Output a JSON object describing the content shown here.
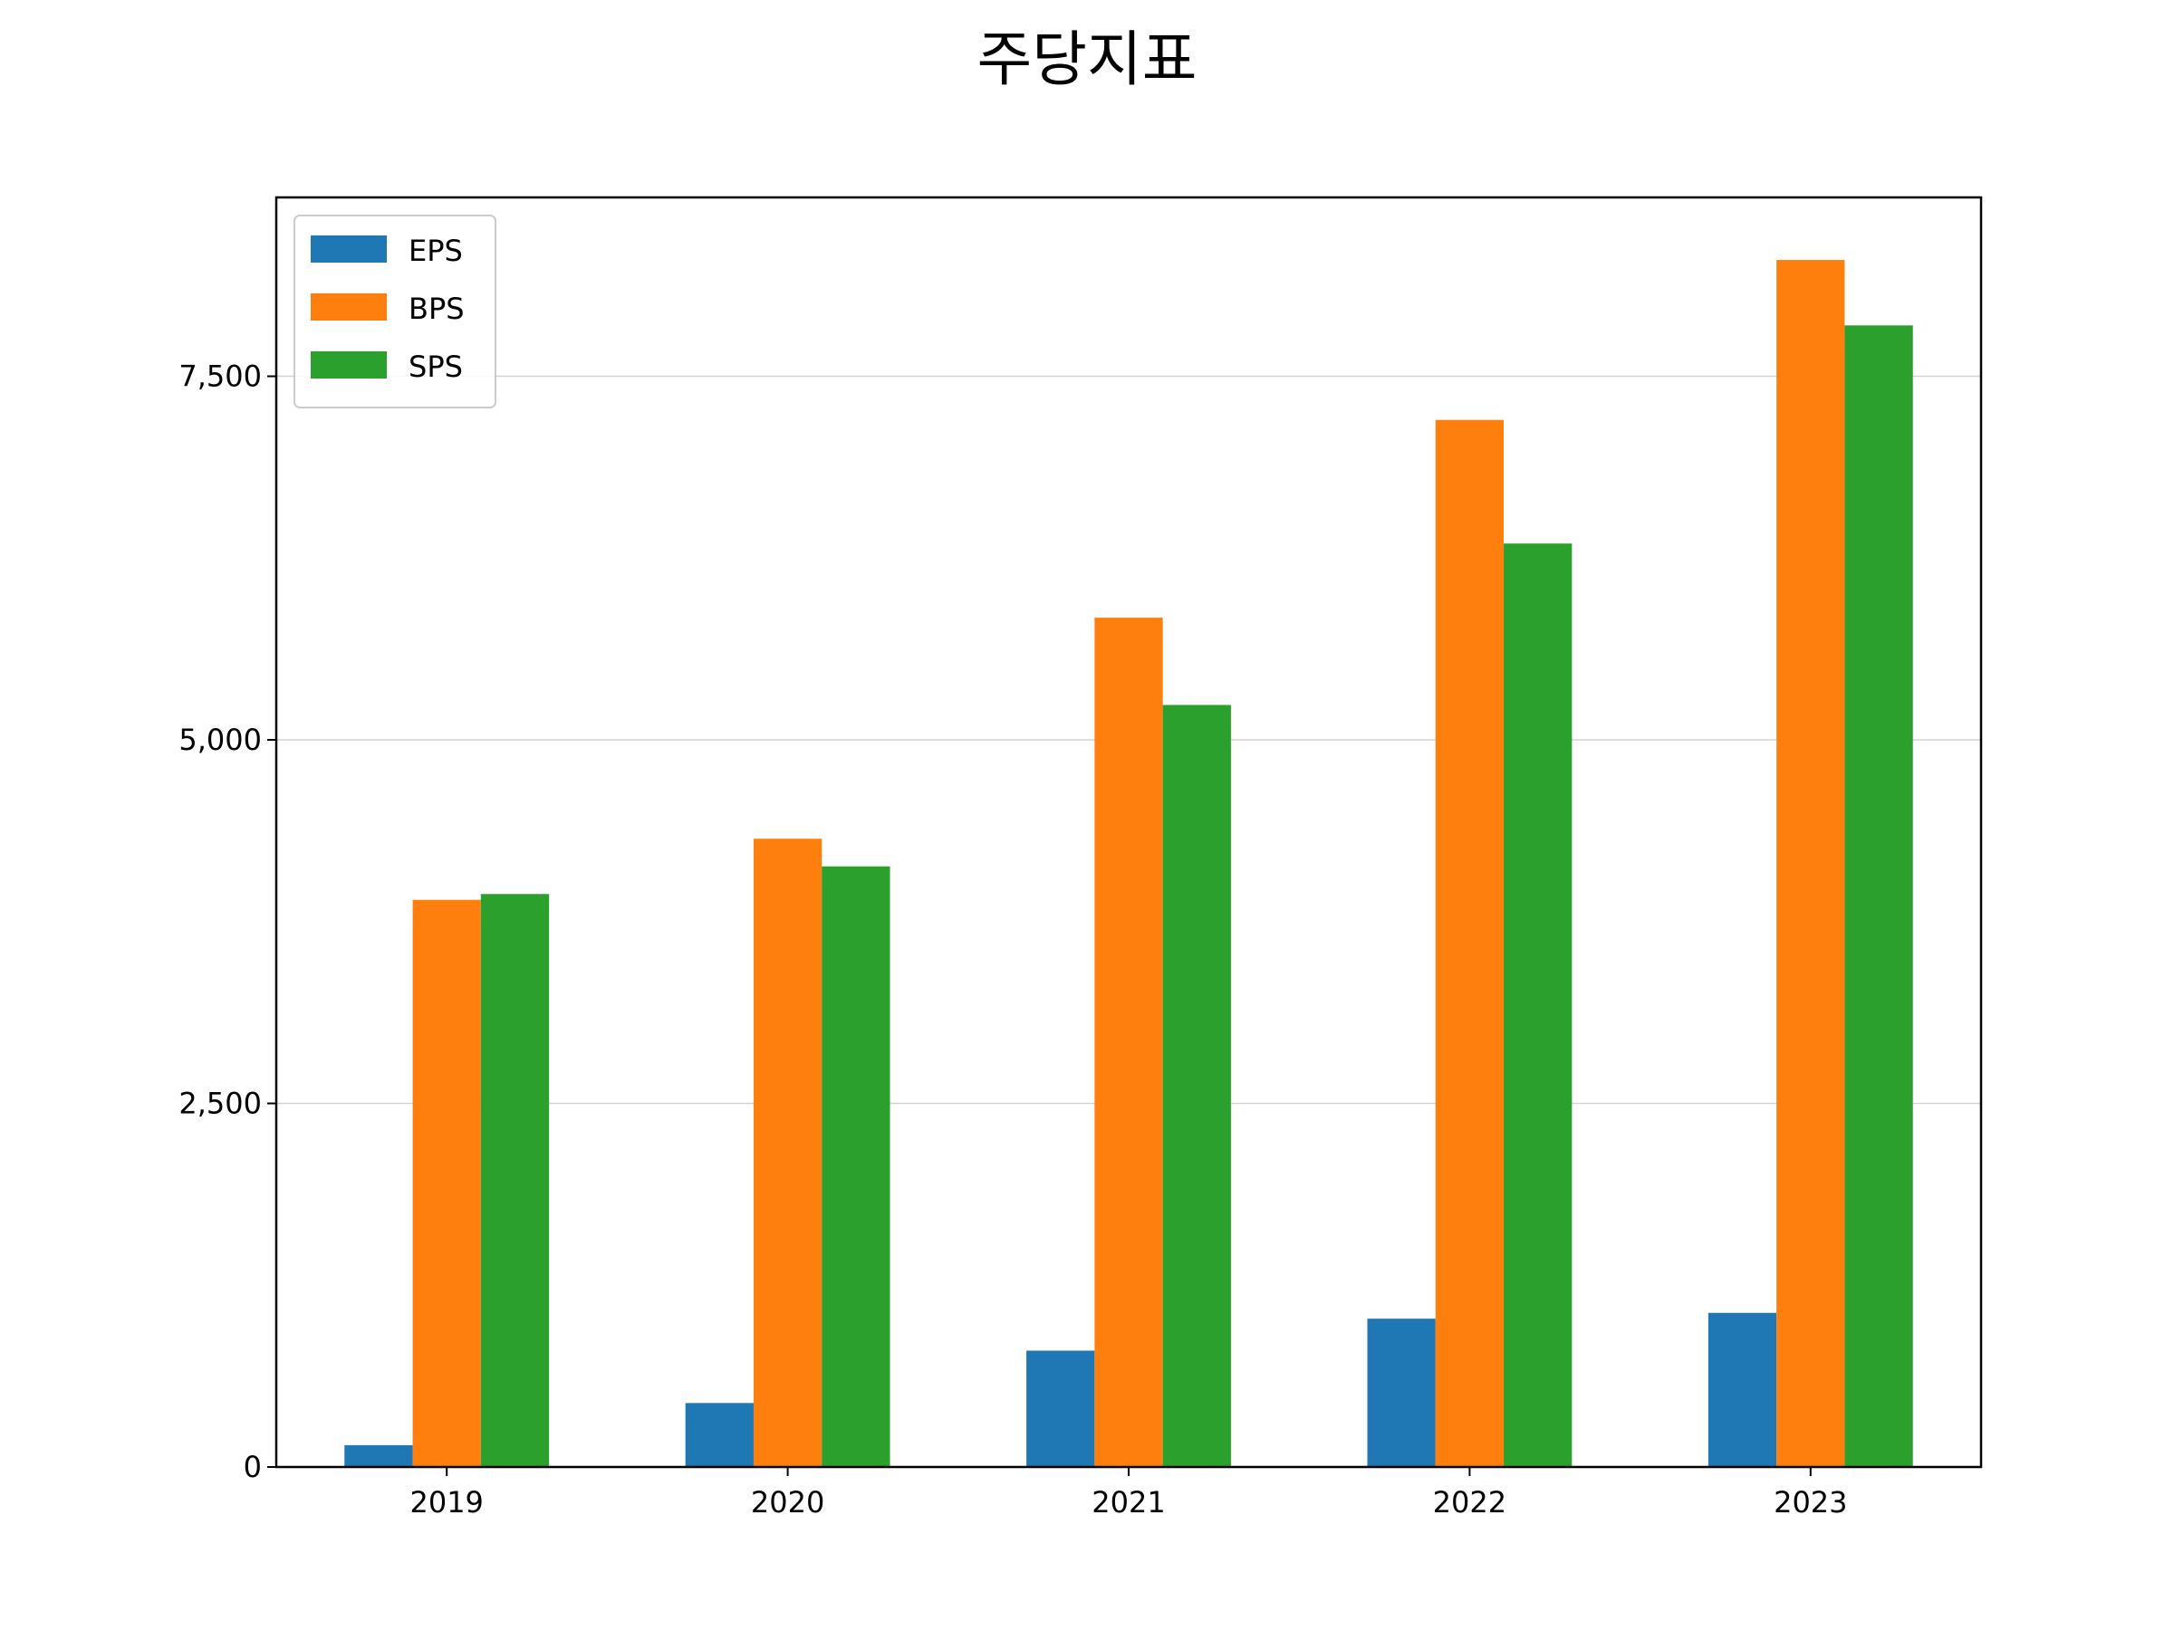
{
  "chart_data": {
    "type": "bar",
    "title": "주당지표",
    "xlabel": "",
    "ylabel": "",
    "categories": [
      "2019",
      "2020",
      "2021",
      "2022",
      "2023"
    ],
    "series": [
      {
        "name": "EPS",
        "color": "#1f77b4",
        "values": [
          150,
          440,
          800,
          1020,
          1060
        ]
      },
      {
        "name": "BPS",
        "color": "#ff7f0e",
        "values": [
          3900,
          4320,
          5840,
          7200,
          8300
        ]
      },
      {
        "name": "SPS",
        "color": "#2ca02c",
        "values": [
          3940,
          4130,
          5240,
          6350,
          7850
        ]
      }
    ],
    "ylim": [
      0,
      8730
    ],
    "yticks": [
      0,
      2500,
      5000,
      7500
    ],
    "ytick_labels": [
      "0",
      "2,500",
      "5,000",
      "7,500"
    ],
    "grid": {
      "y": true,
      "x": false
    },
    "legend": {
      "position": "top-left",
      "entries": [
        "EPS",
        "BPS",
        "SPS"
      ]
    }
  }
}
